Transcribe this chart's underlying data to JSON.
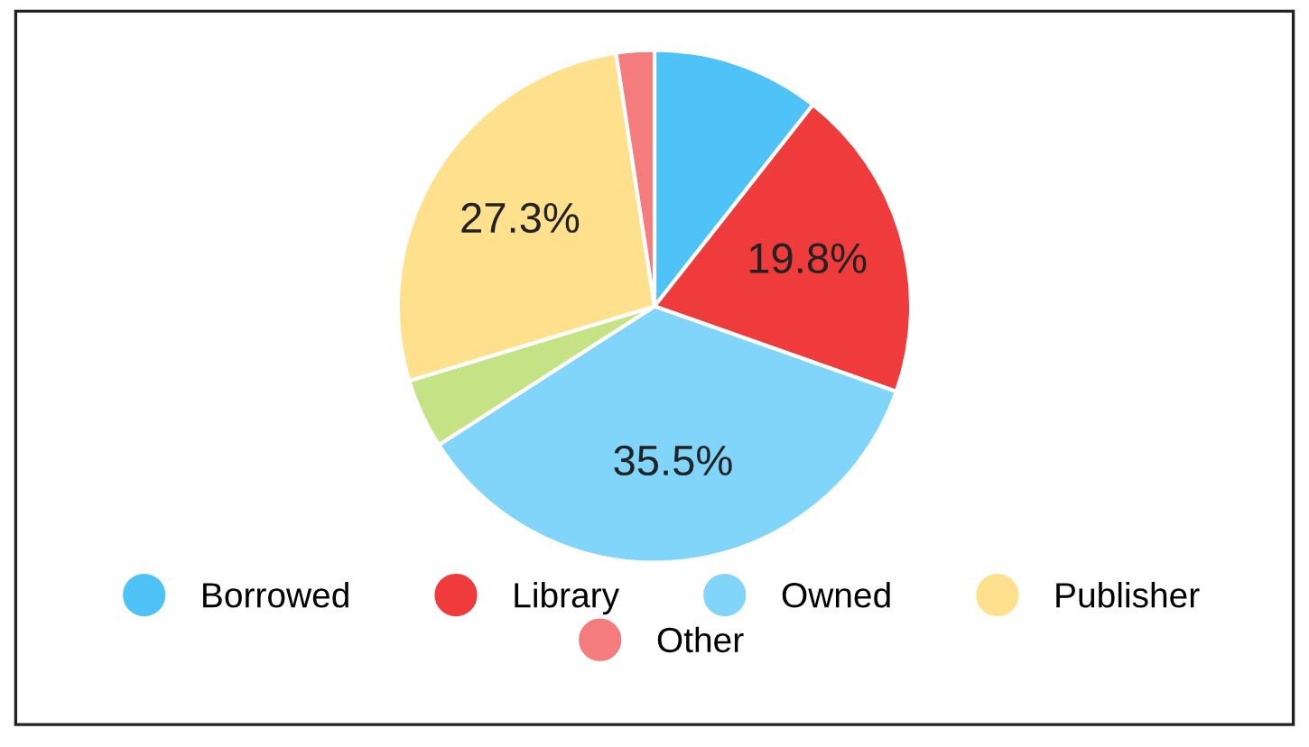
{
  "chart_data": {
    "type": "pie",
    "categories": [
      "Borrowed",
      "Library",
      "Owned",
      null,
      "Publisher",
      "Other"
    ],
    "values": [
      10.6,
      19.8,
      35.5,
      4.4,
      27.3,
      2.4
    ],
    "colors": [
      "#4fc3f7",
      "#ef3b3b",
      "#81d4fa",
      "#c5e384",
      "#ffe08c",
      "#f47c7c"
    ],
    "value_labels": [
      null,
      "19.8%",
      "35.5%",
      null,
      "27.3%",
      null
    ],
    "legend": "bottom"
  }
}
